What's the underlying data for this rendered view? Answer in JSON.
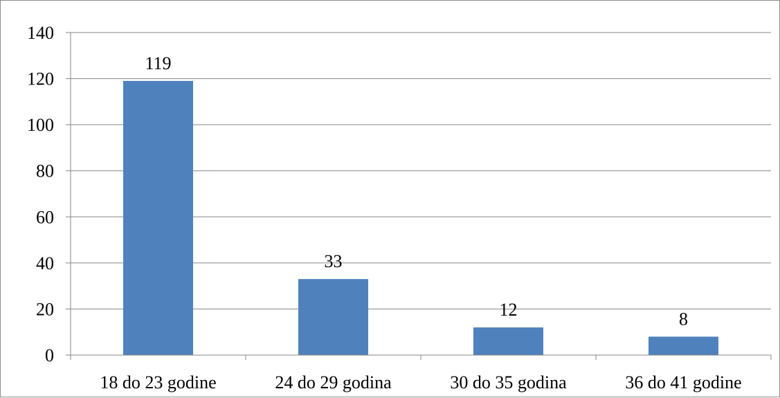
{
  "chart_data": {
    "type": "bar",
    "title": "",
    "xlabel": "",
    "ylabel": "",
    "categories": [
      "18 do 23 godine",
      "24 do 29 godina",
      "30 do 35 godina",
      "36 do 41 godine"
    ],
    "values": [
      119,
      33,
      12,
      8
    ],
    "data_labels": [
      "119",
      "33",
      "12",
      "8"
    ],
    "ylim": [
      0,
      140
    ],
    "yticks": [
      0,
      20,
      40,
      60,
      80,
      100,
      120,
      140
    ],
    "ytick_labels": [
      "0",
      "20",
      "40",
      "60",
      "80",
      "100",
      "120",
      "140"
    ],
    "grid": true,
    "legend": "none",
    "colors": {
      "bar": "#4f81bd",
      "grid": "#868686",
      "axis": "#868686",
      "text": "#000000"
    }
  }
}
